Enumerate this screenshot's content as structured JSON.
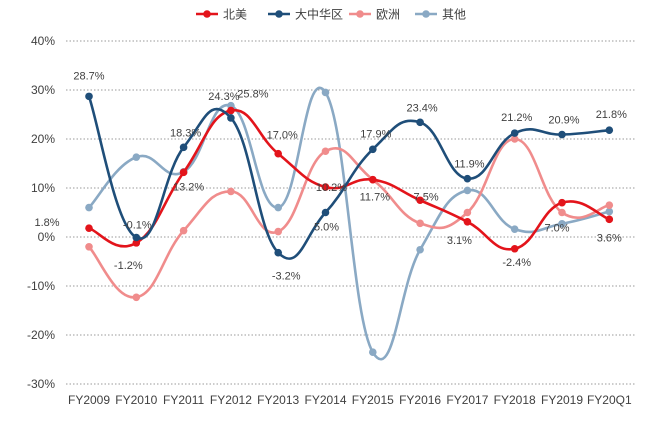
{
  "chart_data": {
    "type": "line",
    "title": "",
    "xlabel": "",
    "ylabel": "",
    "categories": [
      "FY2009",
      "FY2010",
      "FY2011",
      "FY2012",
      "FY2013",
      "FY2014",
      "FY2015",
      "FY2016",
      "FY2017",
      "FY2018",
      "FY2019",
      "FY20Q1"
    ],
    "ylim": [
      -30,
      40
    ],
    "yticks": [
      -30,
      -20,
      -10,
      0,
      10,
      20,
      30,
      40
    ],
    "ytick_labels": [
      "-30%",
      "-20%",
      "-10%",
      "0%",
      "10%",
      "20%",
      "30%",
      "40%"
    ],
    "grid": "horizontal dotted",
    "legend_position": "top",
    "series": [
      {
        "name": "北美",
        "color": "#e3141b",
        "values": [
          1.8,
          -1.2,
          13.2,
          25.8,
          17.0,
          10.2,
          11.7,
          7.5,
          3.1,
          -2.4,
          7.0,
          3.6
        ],
        "labels": [
          "1.8%",
          "-1.2%",
          "13.2%",
          "25.8%",
          "17.0%",
          "10.2%",
          "11.7%",
          "7.5%",
          "3.1%",
          "-2.4%",
          "7.0%",
          "3.6%"
        ]
      },
      {
        "name": "大中华区",
        "color": "#1f4e79",
        "values": [
          28.7,
          -0.1,
          18.3,
          24.3,
          -3.2,
          5.0,
          17.9,
          23.4,
          11.9,
          21.2,
          20.9,
          21.8
        ],
        "labels": [
          "28.7%",
          "-0.1%",
          "18.3%",
          "24.3%",
          "-3.2%",
          "5.0%",
          "17.9%",
          "23.4%",
          "11.9%",
          "21.2%",
          "20.9%",
          "21.8%"
        ]
      },
      {
        "name": "欧洲",
        "color": "#f08c8c",
        "values": [
          -2.0,
          -12.3,
          1.3,
          9.3,
          1.1,
          17.5,
          11.7,
          2.8,
          5.0,
          20.0,
          5.0,
          6.5
        ],
        "labels": []
      },
      {
        "name": "其他",
        "color": "#8aa9c4",
        "values": [
          6.0,
          16.3,
          13.3,
          26.8,
          6.0,
          29.5,
          -23.5,
          -2.6,
          9.5,
          1.6,
          2.7,
          5.2
        ],
        "labels": []
      }
    ]
  }
}
